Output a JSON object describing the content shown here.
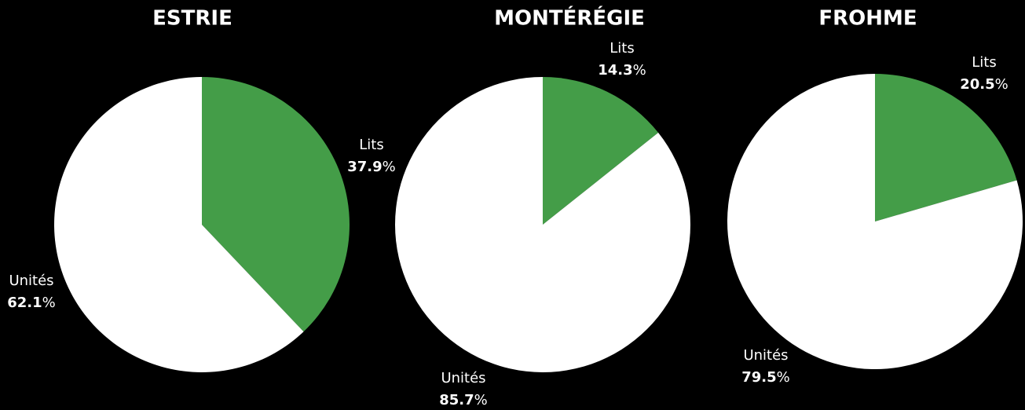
{
  "chart_data": [
    {
      "type": "pie",
      "title": "ESTRIE",
      "categories": [
        "Lits",
        "Unités"
      ],
      "values": [
        37.9,
        62.1
      ],
      "value_labels": [
        "37.9%",
        "62.1%"
      ],
      "colors": [
        "#449d48",
        "#ffffff"
      ]
    },
    {
      "type": "pie",
      "title": "MONTÉRÉGIE",
      "categories": [
        "Lits",
        "Unités"
      ],
      "values": [
        14.3,
        85.7
      ],
      "value_labels": [
        "14.3%",
        "85.7%"
      ],
      "colors": [
        "#449d48",
        "#ffffff"
      ]
    },
    {
      "type": "pie",
      "title": "FROHME",
      "categories": [
        "Lits",
        "Unités"
      ],
      "values": [
        20.5,
        79.5
      ],
      "value_labels": [
        "20.5%",
        "79.5%"
      ],
      "colors": [
        "#449d48",
        "#ffffff"
      ]
    }
  ]
}
